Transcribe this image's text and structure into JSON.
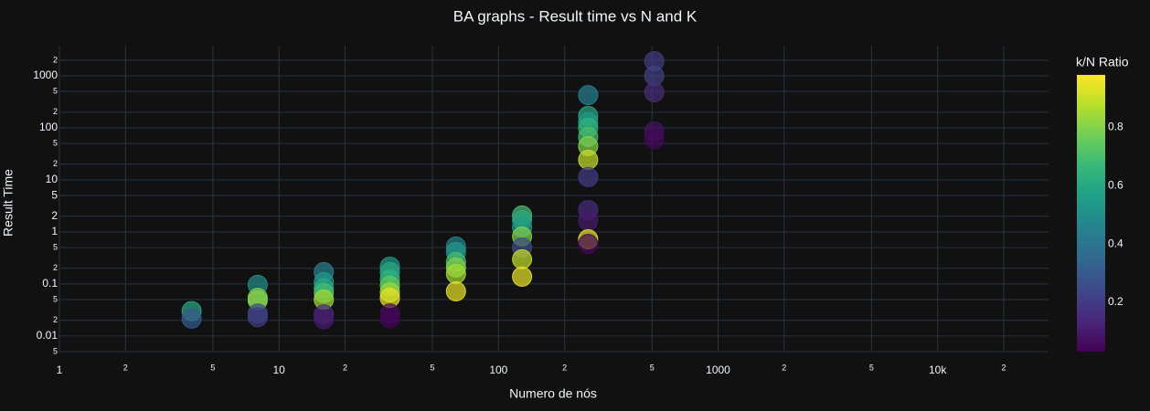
{
  "chart_data": {
    "type": "scatter",
    "title": "BA graphs - Result time vs N and K",
    "x_label": "Numero de nós",
    "y_label": "Result Time",
    "log_x": true,
    "log_y": true,
    "grid": true,
    "opacity": 0.7,
    "xlim": [
      1,
      32000
    ],
    "ylim": [
      0.005,
      3800
    ],
    "xticks": [
      1,
      {
        "value": 2,
        "label": "2"
      },
      {
        "value": 5,
        "label": "5"
      },
      10,
      {
        "value": 20,
        "label": "2"
      },
      {
        "value": 50,
        "label": "5"
      },
      100,
      {
        "value": 200,
        "label": "2"
      },
      {
        "value": 500,
        "label": "5"
      },
      1000,
      {
        "value": 2000,
        "label": "2"
      },
      {
        "value": 5000,
        "label": "5"
      },
      {
        "value": 10000,
        "label": "10k"
      },
      {
        "value": 20000,
        "label": "2"
      }
    ],
    "yticks": [
      {
        "value": 0.005,
        "label": "5"
      },
      0.01,
      {
        "value": 0.02,
        "label": "2"
      },
      {
        "value": 0.05,
        "label": "5"
      },
      0.1,
      {
        "value": 0.2,
        "label": "2"
      },
      {
        "value": 0.5,
        "label": "5"
      },
      1,
      2,
      5,
      10,
      {
        "value": 20,
        "label": "2"
      },
      {
        "value": 50,
        "label": "5"
      },
      100,
      {
        "value": 200,
        "label": "2"
      },
      {
        "value": 500,
        "label": "5"
      },
      1000,
      {
        "value": 2000,
        "label": "2"
      }
    ],
    "x": [
      4,
      4,
      8,
      8,
      8,
      8,
      8,
      16,
      16,
      16,
      16,
      16,
      16,
      16,
      32,
      32,
      32,
      32,
      32,
      32,
      32,
      32,
      64,
      64,
      64,
      64,
      64,
      64,
      128,
      128,
      128,
      128,
      128,
      128,
      128,
      256,
      256,
      256,
      256,
      256,
      256,
      256,
      256,
      256,
      256,
      256,
      256,
      512,
      512,
      512,
      512,
      512
    ],
    "y": [
      0.03,
      0.0216,
      0.096,
      0.054,
      0.048,
      0.027,
      0.023,
      0.169,
      0.108,
      0.082,
      0.067,
      0.05,
      0.026,
      0.021,
      0.215,
      0.169,
      0.122,
      0.092,
      0.069,
      0.054,
      0.027,
      0.022,
      0.524,
      0.411,
      0.264,
      0.207,
      0.156,
      0.072,
      2.07,
      1.69,
      1.22,
      0.817,
      0.503,
      0.298,
      0.138,
      426,
      169,
      128,
      100,
      67,
      44.6,
      24.4,
      11.3,
      2.64,
      1.62,
      0.72,
      0.59,
      1913,
      1000,
      483,
      85,
      61
    ],
    "color_values": [
      0.6,
      0.3,
      0.5,
      0.8,
      0.8,
      0.25,
      0.2,
      0.45,
      0.55,
      0.6,
      0.7,
      0.85,
      0.15,
      0.1,
      0.55,
      0.6,
      0.65,
      0.75,
      0.85,
      0.95,
      0.06,
      0.04,
      0.45,
      0.55,
      0.7,
      0.8,
      0.85,
      0.95,
      0.7,
      0.6,
      0.55,
      0.8,
      0.25,
      0.9,
      0.95,
      0.45,
      0.6,
      0.55,
      0.65,
      0.7,
      0.8,
      0.9,
      0.2,
      0.15,
      0.1,
      0.95,
      0.05,
      0.2,
      0.22,
      0.15,
      0.08,
      0.05
    ],
    "colorscale": [
      "#440154",
      "#482878",
      "#3e4989",
      "#31688e",
      "#26828e",
      "#1f9e89",
      "#35b779",
      "#6ece58",
      "#b5de2b",
      "#fde725"
    ],
    "colorbar": {
      "title": "k/N Ratio",
      "lim": [
        0.031,
        0.98
      ],
      "ticks": [
        0.2,
        0.4,
        0.6,
        0.8
      ]
    }
  }
}
